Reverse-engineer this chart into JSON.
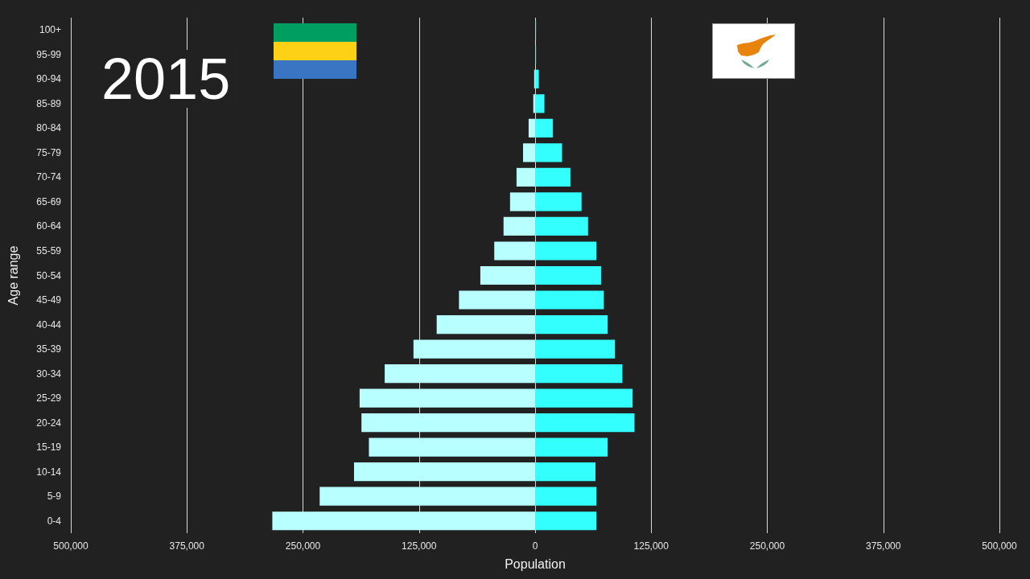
{
  "chart_data": {
    "type": "bar",
    "orientation": "horizontal",
    "stacked": true,
    "title": "2015",
    "xlabel": "Population",
    "ylabel": "Age range",
    "categories": [
      "100+",
      "95-99",
      "90-94",
      "85-89",
      "80-84",
      "75-79",
      "70-74",
      "65-69",
      "60-64",
      "55-59",
      "50-54",
      "45-49",
      "40-44",
      "35-39",
      "30-34",
      "25-29",
      "20-24",
      "15-19",
      "10-14",
      "5-9",
      "0-4"
    ],
    "series": [
      {
        "color": "#b8ffff",
        "values": [
          0,
          0,
          -1000,
          -2000,
          -7000,
          -13000,
          -20000,
          -27000,
          -34000,
          -44000,
          -59000,
          -82000,
          -106000,
          -131000,
          -162000,
          -189000,
          -187000,
          -179000,
          -195000,
          -232000,
          -283000
        ]
      },
      {
        "color": "#33ffff",
        "values": [
          1000,
          1000,
          4000,
          10000,
          19000,
          29000,
          38000,
          50000,
          57000,
          66000,
          71000,
          74000,
          78000,
          86000,
          94000,
          105000,
          107000,
          78000,
          65000,
          66000,
          66000
        ]
      }
    ],
    "xlim": [
      -500000,
      500000
    ],
    "xticks": [
      {
        "value": -500000,
        "label": "500,000"
      },
      {
        "value": -375000,
        "label": "375,000"
      },
      {
        "value": -250000,
        "label": "250,000"
      },
      {
        "value": -125000,
        "label": "125,000"
      },
      0,
      {
        "value": 125000,
        "label": "125,000"
      },
      {
        "value": 250000,
        "label": "250,000"
      },
      {
        "value": 375000,
        "label": "375,000"
      },
      {
        "value": 500000,
        "label": "500,000"
      }
    ],
    "grid": "x"
  }
}
